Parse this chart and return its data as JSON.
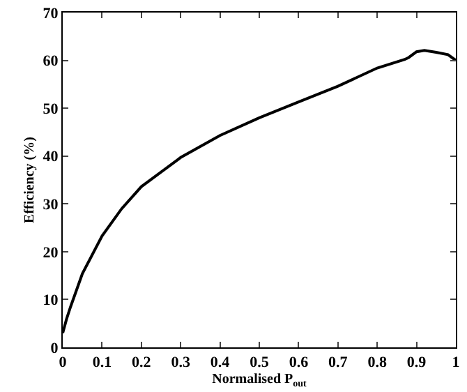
{
  "chart_data": {
    "type": "line",
    "xlabel": "Normalised P$_{out}$",
    "ylabel": "Efficiency (%)",
    "x": [
      0,
      0.01,
      0.02,
      0.05,
      0.1,
      0.15,
      0.2,
      0.3,
      0.4,
      0.5,
      0.6,
      0.7,
      0.8,
      0.87,
      0.88,
      0.9,
      0.92,
      0.95,
      0.98,
      1.0
    ],
    "series": [
      {
        "color": "#000000",
        "values": [
          3,
          6,
          8.5,
          15.4,
          23.3,
          29,
          33.6,
          39.7,
          44.3,
          48,
          51.3,
          54.6,
          58.4,
          60.2,
          60.6,
          61.8,
          62.1,
          61.7,
          61.2,
          60
        ]
      }
    ],
    "xlim": [
      0,
      1
    ],
    "ylim": [
      0,
      70
    ],
    "xticks": [
      0,
      0.1,
      0.2,
      0.3,
      0.4,
      0.5,
      0.6,
      0.7,
      0.8,
      0.9,
      1
    ],
    "yticks": [
      0,
      10,
      20,
      30,
      40,
      50,
      60,
      70
    ],
    "grid": false,
    "legend": false,
    "marker": "none",
    "line_style": "solid"
  }
}
